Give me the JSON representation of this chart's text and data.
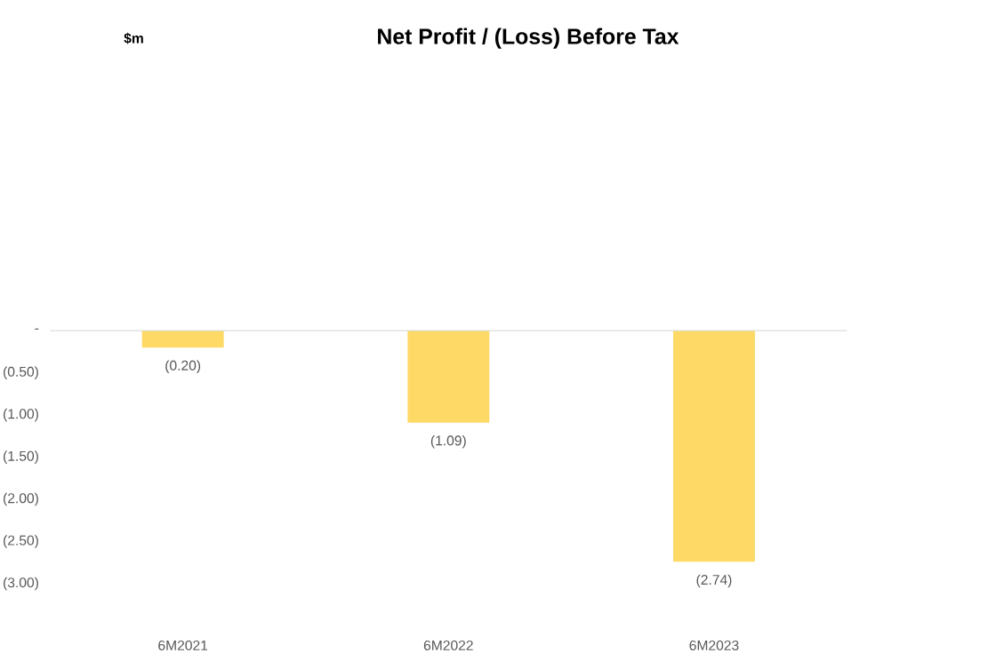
{
  "chart_data": {
    "type": "bar",
    "title": "Net Profit / (Loss) Before Tax",
    "annotations": [
      "$m"
    ],
    "categories": [
      "6M2021",
      "6M2022",
      "6M2023"
    ],
    "values": [
      -0.2,
      -1.09,
      -2.74
    ],
    "value_labels": [
      "(0.20)",
      "(1.09)",
      "(2.74)"
    ],
    "color": "#ffd966",
    "ylim": [
      -3,
      0
    ],
    "yticks": [
      {
        "value": 0,
        "label": "-"
      },
      {
        "value": -0.5,
        "label": "(0.50)"
      },
      {
        "value": -1,
        "label": "(1.00)"
      },
      {
        "value": -1.5,
        "label": "(1.50)"
      },
      {
        "value": -2,
        "label": "(2.00)"
      },
      {
        "value": -2.5,
        "label": "(2.50)"
      },
      {
        "value": -3,
        "label": "(3.00)"
      }
    ],
    "grid": false
  }
}
